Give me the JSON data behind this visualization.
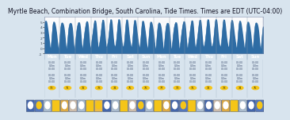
{
  "title": "Myrtle Beach, Combination Bridge, South Carolina, Tide Times. Times are EDT (UTC-04:00)",
  "title_fontsize": 5.5,
  "bg_color": "#d8e4ee",
  "chart_bg_light": "#e8eef5",
  "chart_bg_dark": "#c8d4e0",
  "wave_color": "#2e6ca4",
  "wave_top_color": "#f0f4f8",
  "ylim": [
    -1.0,
    6.0
  ],
  "num_days": 14,
  "tide_period_hours": 12.4,
  "amplitude": 2.6,
  "mean_level": 2.5,
  "y_ticks": [
    -1,
    0,
    1,
    2,
    3,
    4,
    5
  ],
  "y_tick_labels": [
    "-1",
    "0",
    "1",
    "2",
    "3",
    "4",
    "5"
  ],
  "header_bg": "#4a6fa0",
  "header_text": "#ffffff",
  "table_bg1": "#f0f4f8",
  "table_bg2": "#e0e8f0",
  "table_line": "#aabbcc",
  "sun_row_bg": "#e8f0f8",
  "moon_row_bg": "#e0e8f4",
  "weather_strip_bg": "#181828",
  "photo_strip_bg": "#2a3a5a",
  "day_names": [
    "Mon",
    "Tue",
    "Wed",
    "Thu",
    "Fri",
    "Sat",
    "Sun",
    "Mon",
    "Tue",
    "Wed",
    "Thu",
    "Fri",
    "Sat",
    "Sun"
  ]
}
